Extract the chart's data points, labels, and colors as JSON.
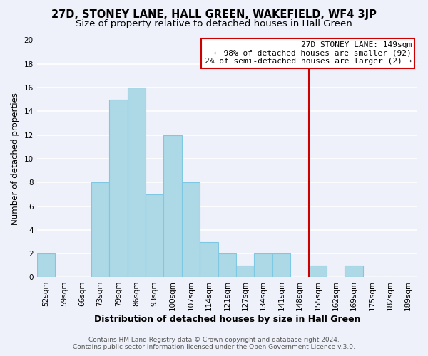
{
  "title": "27D, STONEY LANE, HALL GREEN, WAKEFIELD, WF4 3JP",
  "subtitle": "Size of property relative to detached houses in Hall Green",
  "xlabel": "Distribution of detached houses by size in Hall Green",
  "ylabel": "Number of detached properties",
  "footer_line1": "Contains HM Land Registry data © Crown copyright and database right 2024.",
  "footer_line2": "Contains public sector information licensed under the Open Government Licence v.3.0.",
  "bin_labels": [
    "52sqm",
    "59sqm",
    "66sqm",
    "73sqm",
    "79sqm",
    "86sqm",
    "93sqm",
    "100sqm",
    "107sqm",
    "114sqm",
    "121sqm",
    "127sqm",
    "134sqm",
    "141sqm",
    "148sqm",
    "155sqm",
    "162sqm",
    "169sqm",
    "175sqm",
    "182sqm",
    "189sqm"
  ],
  "bar_values": [
    2,
    0,
    0,
    8,
    15,
    16,
    7,
    12,
    8,
    3,
    2,
    1,
    2,
    2,
    0,
    1,
    0,
    1,
    0,
    0,
    0
  ],
  "bar_color": "#add8e6",
  "bar_edge_color": "#7ec8e3",
  "vline_x_index": 14,
  "vline_color": "#cc0000",
  "annotation_title": "27D STONEY LANE: 149sqm",
  "annotation_line2": "← 98% of detached houses are smaller (92)",
  "annotation_line3": "2% of semi-detached houses are larger (2) →",
  "ylim": [
    0,
    20
  ],
  "yticks": [
    0,
    2,
    4,
    6,
    8,
    10,
    12,
    14,
    16,
    18,
    20
  ],
  "background_color": "#eef1f9",
  "grid_color": "#ffffff",
  "title_fontsize": 10.5,
  "subtitle_fontsize": 9.5,
  "ylabel_fontsize": 8.5,
  "xlabel_fontsize": 9,
  "tick_fontsize": 7.5,
  "footer_fontsize": 6.5
}
